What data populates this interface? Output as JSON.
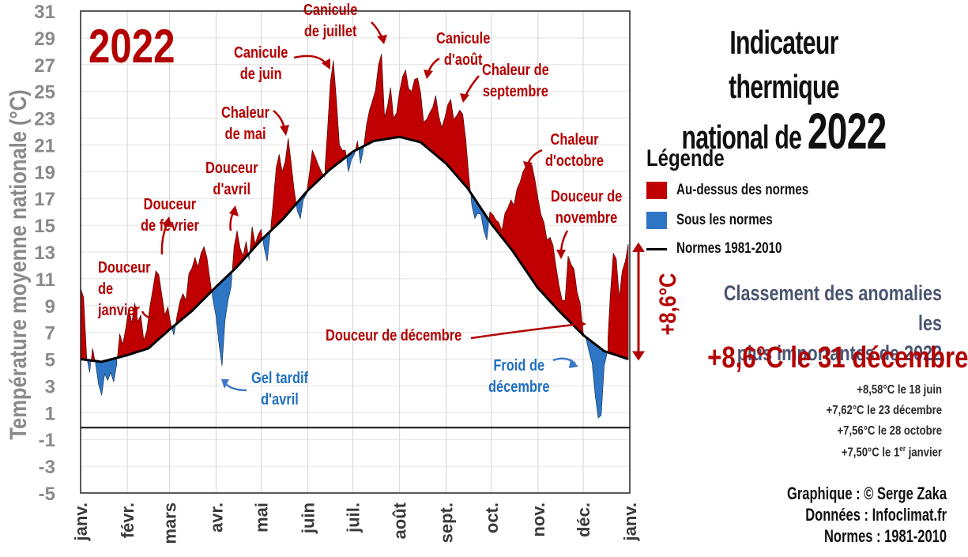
{
  "year_badge": "2022",
  "title": {
    "line1": "Indicateur thermique",
    "line2_prefix": "national de",
    "line2_year": "2022"
  },
  "legend": {
    "title": "Légende",
    "items": [
      {
        "label": "Au-dessus des normes",
        "color": "#c00000"
      },
      {
        "label": "Sous les normes",
        "color": "#2e75c4"
      },
      {
        "label": "Normes 1981-2010",
        "color": "#000000"
      }
    ]
  },
  "ranking": {
    "heading_line1": "Classement des anomalies les",
    "heading_line2": "plus importantes de 2022",
    "top": "+8,6°C le 31 décembre",
    "items": [
      "+8,58°C le 18 juin",
      "+7,62°C le 23 décembre",
      "+7,56°C le 28 octobre",
      "+7,50°C le 1er janvier"
    ]
  },
  "credits": [
    "Graphique : © Serge Zaka",
    "Données : Infoclimat.fr",
    "Normes : 1981-2010"
  ],
  "annotations": {
    "janvier": [
      "Douceur",
      "de",
      "janvier"
    ],
    "fevrier": [
      "Douceur",
      "de février"
    ],
    "avril": [
      "Douceur",
      "d'avril"
    ],
    "mai": [
      "Chaleur",
      "de mai"
    ],
    "juin": [
      "Canicule",
      "de juin"
    ],
    "juillet": [
      "Canicule",
      "de juillet"
    ],
    "aout": [
      "Canicule",
      "d'août"
    ],
    "septembre": [
      "Chaleur de",
      "septembre"
    ],
    "octobre": [
      "Chaleur",
      "d'octobre"
    ],
    "novembre": [
      "Douceur de",
      "novembre"
    ],
    "decembre_chaud": [
      "Douceur de décembre"
    ],
    "decembre_froid": [
      "Froid de",
      "décembre"
    ],
    "gel_avril": [
      "Gel tardif",
      "d'avril"
    ],
    "delta": "+8,6°C"
  },
  "chart_data": {
    "type": "area",
    "title": "Indicateur thermique national de 2022",
    "ylabel": "Température moyenne nationale (°C)",
    "xlabel": "",
    "ylim": [
      -5,
      31
    ],
    "yticks": [
      -5,
      -3,
      -1,
      1,
      3,
      5,
      7,
      9,
      11,
      13,
      15,
      17,
      19,
      21,
      23,
      25,
      27,
      29,
      31
    ],
    "x_tick_labels": [
      "janv.",
      "févr.",
      "mars",
      "avr.",
      "mai",
      "juin",
      "juil.",
      "août",
      "sept.",
      "oct.",
      "nov.",
      "déc.",
      "janv."
    ],
    "grid": true,
    "legend_position": "right",
    "x_unit": "day_of_year",
    "normals_1981_2010": [
      [
        1,
        5.0
      ],
      [
        15,
        4.8
      ],
      [
        32,
        5.3
      ],
      [
        46,
        5.8
      ],
      [
        60,
        7.2
      ],
      [
        75,
        8.6
      ],
      [
        91,
        10.4
      ],
      [
        105,
        11.9
      ],
      [
        121,
        13.9
      ],
      [
        135,
        15.4
      ],
      [
        152,
        17.6
      ],
      [
        166,
        19.1
      ],
      [
        182,
        20.5
      ],
      [
        196,
        21.3
      ],
      [
        213,
        21.6
      ],
      [
        227,
        21.2
      ],
      [
        244,
        19.6
      ],
      [
        258,
        17.8
      ],
      [
        274,
        15.1
      ],
      [
        288,
        13.1
      ],
      [
        305,
        10.3
      ],
      [
        319,
        8.6
      ],
      [
        335,
        6.8
      ],
      [
        349,
        5.6
      ],
      [
        365,
        5.0
      ]
    ],
    "observed_daily_mean": [
      [
        1,
        10.3
      ],
      [
        3,
        9.6
      ],
      [
        5,
        5.2
      ],
      [
        7,
        4.0
      ],
      [
        9,
        5.8
      ],
      [
        11,
        4.6
      ],
      [
        13,
        3.1
      ],
      [
        15,
        2.3
      ],
      [
        17,
        3.9
      ],
      [
        19,
        3.4
      ],
      [
        21,
        4.0
      ],
      [
        23,
        3.3
      ],
      [
        25,
        4.6
      ],
      [
        27,
        6.9
      ],
      [
        29,
        6.1
      ],
      [
        31,
        7.3
      ],
      [
        33,
        8.8
      ],
      [
        35,
        7.7
      ],
      [
        37,
        9.2
      ],
      [
        39,
        7.8
      ],
      [
        41,
        8.3
      ],
      [
        43,
        6.4
      ],
      [
        45,
        7.1
      ],
      [
        47,
        8.9
      ],
      [
        49,
        10.2
      ],
      [
        51,
        11.6
      ],
      [
        53,
        11.3
      ],
      [
        55,
        9.8
      ],
      [
        57,
        8.3
      ],
      [
        59,
        8.9
      ],
      [
        61,
        7.6
      ],
      [
        63,
        6.8
      ],
      [
        65,
        8.2
      ],
      [
        67,
        9.3
      ],
      [
        69,
        9.9
      ],
      [
        71,
        9.4
      ],
      [
        73,
        11.4
      ],
      [
        75,
        11.8
      ],
      [
        77,
        12.6
      ],
      [
        79,
        11.9
      ],
      [
        81,
        12.9
      ],
      [
        83,
        13.4
      ],
      [
        85,
        12.6
      ],
      [
        87,
        10.9
      ],
      [
        89,
        9.4
      ],
      [
        91,
        8.2
      ],
      [
        93,
        6.1
      ],
      [
        95,
        4.5
      ],
      [
        97,
        7.9
      ],
      [
        99,
        9.4
      ],
      [
        101,
        10.4
      ],
      [
        103,
        13.4
      ],
      [
        105,
        14.6
      ],
      [
        107,
        13.3
      ],
      [
        109,
        12.7
      ],
      [
        111,
        13.8
      ],
      [
        113,
        12.4
      ],
      [
        115,
        14.9
      ],
      [
        117,
        13.6
      ],
      [
        119,
        14.3
      ],
      [
        121,
        14.7
      ],
      [
        123,
        13.3
      ],
      [
        125,
        12.3
      ],
      [
        127,
        14.4
      ],
      [
        129,
        16.7
      ],
      [
        131,
        19.3
      ],
      [
        133,
        20.3
      ],
      [
        135,
        19.0
      ],
      [
        137,
        19.8
      ],
      [
        139,
        21.5
      ],
      [
        141,
        19.6
      ],
      [
        143,
        17.6
      ],
      [
        145,
        16.1
      ],
      [
        147,
        15.5
      ],
      [
        149,
        16.9
      ],
      [
        151,
        17.3
      ],
      [
        153,
        18.8
      ],
      [
        155,
        20.6
      ],
      [
        157,
        20.1
      ],
      [
        159,
        19.5
      ],
      [
        161,
        19.0
      ],
      [
        163,
        18.6
      ],
      [
        165,
        21.9
      ],
      [
        167,
        25.7
      ],
      [
        169,
        27.3
      ],
      [
        171,
        24.4
      ],
      [
        173,
        21.0
      ],
      [
        175,
        20.6
      ],
      [
        177,
        20.6
      ],
      [
        179,
        19.0
      ],
      [
        181,
        19.9
      ],
      [
        183,
        20.3
      ],
      [
        185,
        21.3
      ],
      [
        187,
        19.6
      ],
      [
        189,
        20.7
      ],
      [
        191,
        22.5
      ],
      [
        193,
        23.6
      ],
      [
        195,
        24.3
      ],
      [
        197,
        25.1
      ],
      [
        199,
        27.0
      ],
      [
        201,
        27.8
      ],
      [
        203,
        23.1
      ],
      [
        205,
        23.9
      ],
      [
        207,
        25.3
      ],
      [
        209,
        23.0
      ],
      [
        211,
        23.4
      ],
      [
        213,
        25.0
      ],
      [
        215,
        26.1
      ],
      [
        217,
        26.6
      ],
      [
        219,
        25.2
      ],
      [
        221,
        25.0
      ],
      [
        223,
        25.9
      ],
      [
        225,
        26.0
      ],
      [
        227,
        24.9
      ],
      [
        229,
        22.7
      ],
      [
        231,
        22.9
      ],
      [
        233,
        23.4
      ],
      [
        235,
        23.8
      ],
      [
        237,
        24.7
      ],
      [
        239,
        23.2
      ],
      [
        241,
        22.3
      ],
      [
        243,
        23.0
      ],
      [
        245,
        24.0
      ],
      [
        247,
        24.4
      ],
      [
        249,
        22.9
      ],
      [
        251,
        23.2
      ],
      [
        253,
        23.6
      ],
      [
        255,
        23.3
      ],
      [
        257,
        21.4
      ],
      [
        259,
        18.7
      ],
      [
        261,
        16.5
      ],
      [
        263,
        15.5
      ],
      [
        265,
        15.9
      ],
      [
        267,
        15.8
      ],
      [
        269,
        14.6
      ],
      [
        271,
        13.9
      ],
      [
        273,
        16.0
      ],
      [
        275,
        15.8
      ],
      [
        277,
        15.4
      ],
      [
        279,
        15.2
      ],
      [
        281,
        14.6
      ],
      [
        283,
        15.9
      ],
      [
        285,
        16.3
      ],
      [
        287,
        16.9
      ],
      [
        289,
        16.5
      ],
      [
        291,
        17.7
      ],
      [
        293,
        18.2
      ],
      [
        295,
        19.0
      ],
      [
        297,
        19.4
      ],
      [
        299,
        19.5
      ],
      [
        301,
        19.5
      ],
      [
        303,
        18.4
      ],
      [
        305,
        17.0
      ],
      [
        307,
        15.8
      ],
      [
        309,
        15.2
      ],
      [
        311,
        13.9
      ],
      [
        313,
        14.1
      ],
      [
        315,
        13.5
      ],
      [
        317,
        11.9
      ],
      [
        319,
        10.5
      ],
      [
        321,
        9.4
      ],
      [
        323,
        9.4
      ],
      [
        325,
        12.7
      ],
      [
        327,
        12.1
      ],
      [
        329,
        11.7
      ],
      [
        331,
        10.0
      ],
      [
        333,
        9.2
      ],
      [
        335,
        7.0
      ],
      [
        337,
        6.5
      ],
      [
        339,
        5.5
      ],
      [
        341,
        4.7
      ],
      [
        343,
        2.3
      ],
      [
        345,
        0.6
      ],
      [
        347,
        0.8
      ],
      [
        349,
        4.5
      ],
      [
        351,
        5.5
      ],
      [
        353,
        9.7
      ],
      [
        355,
        12.9
      ],
      [
        357,
        12.5
      ],
      [
        359,
        9.6
      ],
      [
        361,
        11.6
      ],
      [
        363,
        12.3
      ],
      [
        365,
        13.6
      ]
    ],
    "series": [
      {
        "name": "Au-dessus des normes",
        "color": "#c00000"
      },
      {
        "name": "Sous les normes",
        "color": "#2e75c4"
      },
      {
        "name": "Normes 1981-2010",
        "color": "#000000"
      }
    ]
  }
}
